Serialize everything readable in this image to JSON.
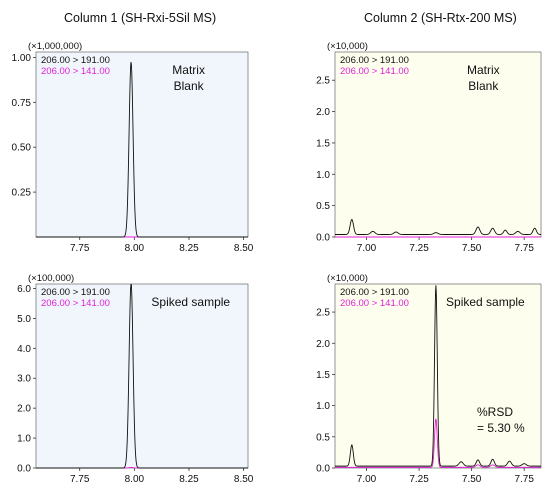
{
  "header": {
    "col1_title": "Column 1 (SH-Rxi-5Sil MS)",
    "col2_title": "Column 2 (SH-Rtx-200 MS)"
  },
  "colors": {
    "trace_primary": "#111111",
    "trace_secondary": "#e020d8",
    "panel_bg_col1": "#f1f6fc",
    "panel_bg_col2": "#fefeee"
  },
  "chart_data": [
    {
      "type": "line",
      "multiplier": "(×1,000,000)",
      "xlim": [
        7.55,
        8.52
      ],
      "ylim": [
        0,
        1.03
      ],
      "xticks": [
        7.75,
        8.0,
        8.25,
        8.5
      ],
      "xtick_labels": [
        "7.75",
        "8.00",
        "8.25",
        "8.50"
      ],
      "yticks": [
        0.25,
        0.5,
        0.75,
        1.0
      ],
      "ytick_labels": [
        "0.25",
        "0.50",
        "0.75",
        "1.00"
      ],
      "annotation": [
        "Matrix",
        "Blank"
      ],
      "legend": [
        "206.00 > 191.00",
        "206.00 > 141.00"
      ],
      "series": [
        {
          "name": "206.00 > 191.00",
          "color": "#111111",
          "baseline": 0.0,
          "peaks": [
            [
              7.985,
              0.975,
              0.009
            ]
          ]
        },
        {
          "name": "206.00 > 141.00",
          "color": "#e020d8",
          "baseline": 0.0,
          "peaks": []
        }
      ]
    },
    {
      "type": "line",
      "multiplier": "(×10,000)",
      "xlim": [
        6.85,
        7.83
      ],
      "ylim": [
        0,
        2.95
      ],
      "xticks": [
        7.0,
        7.25,
        7.5,
        7.75
      ],
      "xtick_labels": [
        "7.00",
        "7.25",
        "7.50",
        "7.75"
      ],
      "yticks": [
        0.0,
        0.5,
        1.0,
        1.5,
        2.0,
        2.5
      ],
      "ytick_labels": [
        "0.0",
        "0.5",
        "1.0",
        "1.5",
        "2.0",
        "2.5"
      ],
      "annotation": [
        "Matrix",
        "Blank"
      ],
      "legend": [
        "206.00 > 191.00",
        "206.00 > 141.00"
      ],
      "series": [
        {
          "name": "206.00 > 191.00",
          "color": "#111111",
          "baseline": 0.04,
          "peaks": [
            [
              6.93,
              0.24,
              0.008
            ],
            [
              7.03,
              0.05,
              0.01
            ],
            [
              7.14,
              0.04,
              0.01
            ],
            [
              7.33,
              0.03,
              0.01
            ],
            [
              7.53,
              0.12,
              0.009
            ],
            [
              7.6,
              0.1,
              0.009
            ],
            [
              7.66,
              0.07,
              0.008
            ],
            [
              7.72,
              0.05,
              0.01
            ],
            [
              7.8,
              0.1,
              0.008
            ]
          ]
        },
        {
          "name": "206.00 > 141.00",
          "color": "#e020d8",
          "baseline": 0.0,
          "peaks": []
        }
      ]
    },
    {
      "type": "line",
      "multiplier": "(×100,000)",
      "xlim": [
        7.55,
        8.52
      ],
      "ylim": [
        0,
        6.15
      ],
      "xticks": [
        7.75,
        8.0,
        8.25,
        8.5
      ],
      "xtick_labels": [
        "7.75",
        "8.00",
        "8.25",
        "8.50"
      ],
      "yticks": [
        0.0,
        1.0,
        2.0,
        3.0,
        4.0,
        5.0,
        6.0
      ],
      "ytick_labels": [
        "0.0",
        "1.0",
        "2.0",
        "3.0",
        "4.0",
        "5.0",
        "6.0"
      ],
      "annotation": [
        "Spiked sample"
      ],
      "legend": [
        "206.00 > 191.00",
        "206.00 > 141.00"
      ],
      "series": [
        {
          "name": "206.00 > 191.00",
          "color": "#111111",
          "baseline": 0.0,
          "peaks": [
            [
              7.985,
              6.2,
              0.009
            ]
          ]
        },
        {
          "name": "206.00 > 141.00",
          "color": "#e020d8",
          "baseline": 0.0,
          "peaks": [
            [
              7.985,
              0.02,
              0.009
            ]
          ]
        }
      ]
    },
    {
      "type": "line",
      "multiplier": "(×10,000)",
      "xlim": [
        6.85,
        7.83
      ],
      "ylim": [
        0,
        2.95
      ],
      "xticks": [
        7.0,
        7.25,
        7.5,
        7.75
      ],
      "xtick_labels": [
        "7.00",
        "7.25",
        "7.50",
        "7.75"
      ],
      "yticks": [
        0.0,
        0.5,
        1.0,
        1.5,
        2.0,
        2.5
      ],
      "ytick_labels": [
        "0.0",
        "0.5",
        "1.0",
        "1.5",
        "2.0",
        "2.5"
      ],
      "annotation": [
        "Spiked sample"
      ],
      "note": [
        "%RSD",
        "= 5.30 %"
      ],
      "legend": [
        "206.00 > 191.00",
        "206.00 > 141.00"
      ],
      "series": [
        {
          "name": "206.00 > 191.00",
          "color": "#111111",
          "baseline": 0.03,
          "peaks": [
            [
              6.93,
              0.34,
              0.007
            ],
            [
              7.33,
              2.9,
              0.0065
            ],
            [
              7.45,
              0.07,
              0.01
            ],
            [
              7.53,
              0.1,
              0.008
            ],
            [
              7.6,
              0.11,
              0.008
            ],
            [
              7.68,
              0.08,
              0.009
            ],
            [
              7.75,
              0.04,
              0.01
            ]
          ]
        },
        {
          "name": "206.00 > 141.00",
          "color": "#e020d8",
          "baseline": 0.01,
          "peaks": [
            [
              7.33,
              0.78,
              0.0065
            ],
            [
              7.53,
              0.04,
              0.01
            ],
            [
              7.6,
              0.04,
              0.01
            ]
          ]
        }
      ]
    }
  ]
}
